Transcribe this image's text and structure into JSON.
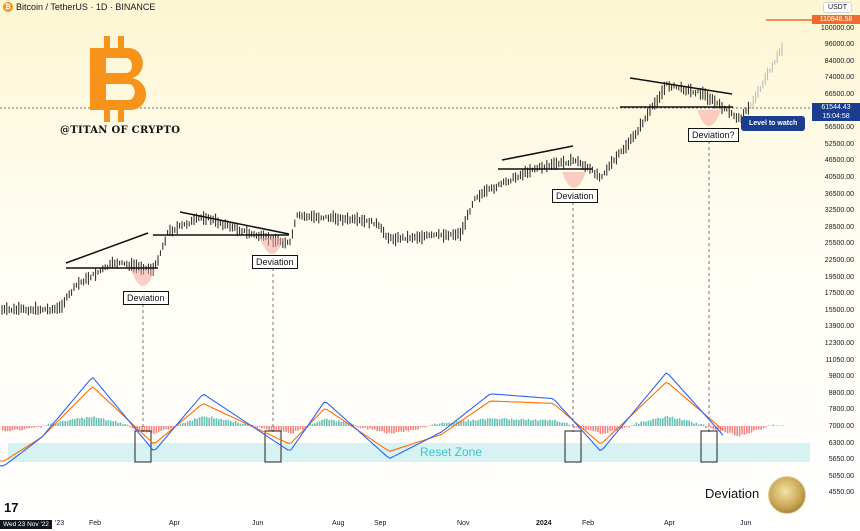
{
  "header": {
    "symbol_line": "Bitcoin / TetherUS · 1D · BINANCE",
    "currency_button": "USDT"
  },
  "branding": {
    "watermark": "@TITAN OF CRYPTO",
    "bottom_caption": "Deviation",
    "tradingview_logo": "17"
  },
  "status": {
    "crosshair_date": "Wed 23 Nov '22"
  },
  "annotations": {
    "deviation_labels": [
      "Deviation",
      "Deviation",
      "Deviation",
      "Deviation?"
    ],
    "reset_zone": "Reset Zone",
    "level_to_watch": "Level to watch"
  },
  "price_tags": {
    "top_price": "110848.58",
    "current_price": "61544.43",
    "countdown": "15:04:58"
  },
  "colors": {
    "accent_orange": "#f7931a",
    "price_line": "#ef6c2c",
    "level_tag": "#1a3d8f",
    "macd_blue": "#2962ff",
    "signal_orange": "#ff6d00",
    "hist_green": "#26a69a",
    "hist_red": "#ef5350",
    "reset_zone_fill": "#c9eef0"
  },
  "chart_data": [
    {
      "type": "line",
      "title": "",
      "scale": "log",
      "y_ticks": [
        "110848.58",
        "100000.00",
        "96000.00",
        "84000.00",
        "74000.00",
        "66500.00",
        "61544.43",
        "56500.00",
        "52500.00",
        "46500.00",
        "40500.00",
        "36500.00",
        "32500.00",
        "28500.00",
        "25500.00",
        "22500.00",
        "19500.00",
        "17500.00",
        "15500.00",
        "13900.00",
        "12300.00",
        "11050.00",
        "9800.00",
        "8800.00",
        "7800.00",
        "7000.00",
        "6300.00",
        "5650.00",
        "5050.00",
        "4550.00"
      ],
      "x_ticks": [
        "'23",
        "Feb",
        "Apr",
        "Jun",
        "Aug",
        "Sep",
        "Nov",
        "2024",
        "Feb",
        "Apr",
        "Jun"
      ],
      "x": [
        "2022-11-23",
        "2023-01-01",
        "2023-01-14",
        "2023-02-10",
        "2023-03-10",
        "2023-03-20",
        "2023-04-14",
        "2023-05-20",
        "2023-06-15",
        "2023-06-20",
        "2023-07-15",
        "2023-08-15",
        "2023-08-25",
        "2023-10-15",
        "2023-10-25",
        "2023-12-05",
        "2024-01-05",
        "2024-01-23",
        "2024-02-15",
        "2024-03-10",
        "2024-04-05",
        "2024-05-01",
        "2024-05-08",
        "2024-06-01",
        "2024-06-20"
      ],
      "series": [
        {
          "values": [
            16500,
            16600,
            19500,
            22500,
            21500,
            27500,
            30400,
            27000,
            25500,
            30500,
            30200,
            29200,
            26300,
            27200,
            34500,
            41500,
            44000,
            39500,
            51000,
            72000,
            68000,
            57500,
            62000,
            92000,
            106000
          ]
        }
      ],
      "deviation_dates": [
        "2023-03-10",
        "2023-06-15",
        "2024-01-23",
        "2024-05-01"
      ],
      "level_to_watch": 61544.43,
      "top_price": 110848.58
    },
    {
      "type": "line",
      "title": "",
      "x": [
        "2022-11-23",
        "2022-12-20",
        "2023-01-25",
        "2023-03-10",
        "2023-04-14",
        "2023-06-15",
        "2023-07-10",
        "2023-08-25",
        "2023-10-01",
        "2023-11-05",
        "2023-12-20",
        "2024-01-23",
        "2024-03-10",
        "2024-05-01",
        "2024-05-20"
      ],
      "series": [
        {
          "values": [
            -1.2,
            0,
            2.5,
            -0.6,
            1.8,
            -0.6,
            1.5,
            -0.9,
            0.2,
            1.8,
            1.6,
            -0.6,
            2.7,
            -0.7,
            -0.2
          ]
        },
        {
          "values": [
            -1.0,
            0,
            2.1,
            -0.3,
            1.4,
            -0.3,
            1.2,
            -0.6,
            0.1,
            1.5,
            1.4,
            -0.3,
            2.3,
            -0.3,
            -0.2
          ]
        }
      ]
    }
  ]
}
